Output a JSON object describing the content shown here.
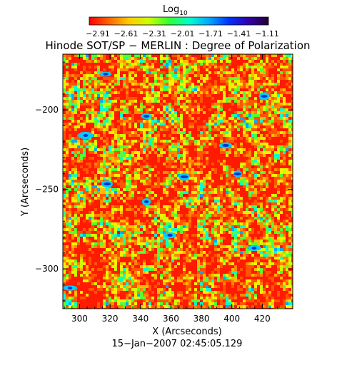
{
  "chart_data": {
    "type": "heatmap",
    "title": "Hinode SOT/SP − MERLIN : Degree of Polarization",
    "colorbar": {
      "label": "Log",
      "label_sub": "10",
      "ticks": [
        "−2.91",
        "−2.61",
        "−2.31",
        "−2.01",
        "−1.71",
        "−1.41",
        "−1.11"
      ],
      "range": [
        -2.91,
        -1.11
      ],
      "colors": [
        "#ff0000",
        "#ff6600",
        "#ffcc00",
        "#ccff00",
        "#33ff33",
        "#00ffcc",
        "#00aaff",
        "#0033ff",
        "#3300aa",
        "#220033"
      ]
    },
    "xlabel": "X (Arcseconds)",
    "ylabel": "Y (Arcseconds)",
    "xlim": [
      289,
      440
    ],
    "ylim": [
      -325,
      -165
    ],
    "xticks": [
      "300",
      "320",
      "340",
      "360",
      "380",
      "400",
      "420"
    ],
    "yticks": [
      "−200",
      "−250",
      "−300"
    ],
    "date_label": "15−Jan−2007 02:45:05.129"
  }
}
